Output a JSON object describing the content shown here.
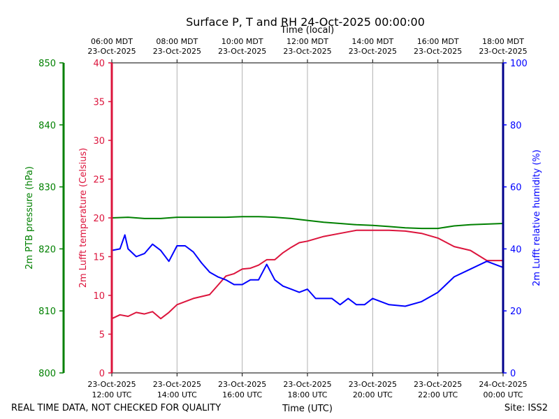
{
  "colors": {
    "pressure": "#008000",
    "temperature": "#dc143c",
    "humidity": "#0000ff",
    "humidity_axis": "#00008b",
    "grid": "#b0b0b0",
    "text": "#000000"
  },
  "chart_data": {
    "type": "line",
    "title": "Surface P, T and RH 24-Oct-2025 00:00:00",
    "top_axis_label": "Time (local)",
    "xlabel": "Time (UTC)",
    "x_hours_utc": [
      12,
      13,
      14,
      15,
      16,
      17,
      18,
      19,
      20,
      21,
      22,
      23,
      24
    ],
    "xlim": [
      12,
      24
    ],
    "bottom_ticks": [
      {
        "hour": 12,
        "date": "23-Oct-2025",
        "time": "12:00 UTC"
      },
      {
        "hour": 14,
        "date": "23-Oct-2025",
        "time": "14:00 UTC"
      },
      {
        "hour": 16,
        "date": "23-Oct-2025",
        "time": "16:00 UTC"
      },
      {
        "hour": 18,
        "date": "23-Oct-2025",
        "time": "18:00 UTC"
      },
      {
        "hour": 20,
        "date": "23-Oct-2025",
        "time": "20:00 UTC"
      },
      {
        "hour": 22,
        "date": "23-Oct-2025",
        "time": "22:00 UTC"
      },
      {
        "hour": 24,
        "date": "24-Oct-2025",
        "time": "00:00 UTC"
      }
    ],
    "top_ticks": [
      {
        "hour": 12,
        "time": "06:00 MDT",
        "date": "23-Oct-2025"
      },
      {
        "hour": 14,
        "time": "08:00 MDT",
        "date": "23-Oct-2025"
      },
      {
        "hour": 16,
        "time": "10:00 MDT",
        "date": "23-Oct-2025"
      },
      {
        "hour": 18,
        "time": "12:00 MDT",
        "date": "23-Oct-2025"
      },
      {
        "hour": 20,
        "time": "14:00 MDT",
        "date": "23-Oct-2025"
      },
      {
        "hour": 22,
        "time": "16:00 MDT",
        "date": "23-Oct-2025"
      },
      {
        "hour": 24,
        "time": "18:00 MDT",
        "date": "23-Oct-2025"
      }
    ],
    "pressure_axis": {
      "label": "2m PTB pressure (hPa)",
      "ylim": [
        800,
        850
      ],
      "ticks": [
        800,
        810,
        820,
        830,
        840,
        850
      ]
    },
    "temperature_axis": {
      "label": "2m Lufft temperature (Celsius)",
      "ylim": [
        0,
        40
      ],
      "ticks": [
        0,
        5,
        10,
        15,
        20,
        25,
        30,
        35,
        40
      ]
    },
    "humidity_axis": {
      "label": "2m Lufft relative humidity (%)",
      "ylim": [
        0,
        100
      ],
      "ticks": [
        0,
        20,
        40,
        60,
        80,
        100
      ]
    },
    "series": [
      {
        "name": "2m PTB pressure (hPa)",
        "axis": "pressure",
        "x": [
          12,
          12.5,
          13,
          13.5,
          14,
          14.5,
          15,
          15.5,
          16,
          16.5,
          17,
          17.5,
          18,
          18.5,
          19,
          19.5,
          20,
          20.5,
          21,
          21.5,
          22,
          22.5,
          23,
          23.5,
          24
        ],
        "values": [
          825.0,
          825.1,
          824.9,
          824.9,
          825.1,
          825.1,
          825.1,
          825.1,
          825.2,
          825.2,
          825.1,
          824.9,
          824.6,
          824.3,
          824.1,
          823.9,
          823.8,
          823.6,
          823.4,
          823.3,
          823.3,
          823.7,
          823.9,
          824.0,
          824.1
        ]
      },
      {
        "name": "2m Lufft temperature (Celsius)",
        "axis": "temperature",
        "x": [
          12,
          12.25,
          12.5,
          12.75,
          13,
          13.25,
          13.5,
          13.75,
          14,
          14.5,
          15,
          15.25,
          15.5,
          15.75,
          16,
          16.25,
          16.5,
          16.75,
          17,
          17.25,
          17.5,
          17.75,
          18,
          18.5,
          19,
          19.5,
          20,
          20.5,
          21,
          21.5,
          22,
          22.5,
          23,
          23.5,
          24
        ],
        "values": [
          7.0,
          7.5,
          7.3,
          7.8,
          7.6,
          7.9,
          7.0,
          7.8,
          8.8,
          9.6,
          10.1,
          11.3,
          12.5,
          12.8,
          13.4,
          13.5,
          13.9,
          14.6,
          14.6,
          15.5,
          16.2,
          16.8,
          17.0,
          17.6,
          18.0,
          18.4,
          18.4,
          18.4,
          18.3,
          18.0,
          17.4,
          16.3,
          15.8,
          14.5,
          14.5
        ]
      },
      {
        "name": "2m Lufft relative humidity (%)",
        "axis": "humidity",
        "x": [
          12,
          12.25,
          12.4,
          12.5,
          12.75,
          13,
          13.25,
          13.5,
          13.75,
          14,
          14.25,
          14.5,
          14.75,
          15,
          15.25,
          15.5,
          15.75,
          16,
          16.25,
          16.5,
          16.75,
          17,
          17.25,
          17.5,
          17.75,
          18,
          18.25,
          18.5,
          18.75,
          19,
          19.25,
          19.5,
          19.75,
          20,
          20.5,
          21,
          21.5,
          22,
          22.5,
          23,
          23.5,
          24
        ],
        "values": [
          39.5,
          40.0,
          44.5,
          40.0,
          37.5,
          38.5,
          41.5,
          39.5,
          36.0,
          41.0,
          41.0,
          39.0,
          35.5,
          32.5,
          31.0,
          30.0,
          28.5,
          28.5,
          30.0,
          30.0,
          35.0,
          30.0,
          28.0,
          27.0,
          26.0,
          27.0,
          24.0,
          24.0,
          24.0,
          22.0,
          24.0,
          22.0,
          22.0,
          24.0,
          22.0,
          21.5,
          23.0,
          26.0,
          31.0,
          33.5,
          36.0,
          34.0
        ]
      }
    ]
  },
  "footer": {
    "left_note": "REAL TIME DATA, NOT CHECKED FOR QUALITY",
    "site": "Site: ISS2"
  }
}
